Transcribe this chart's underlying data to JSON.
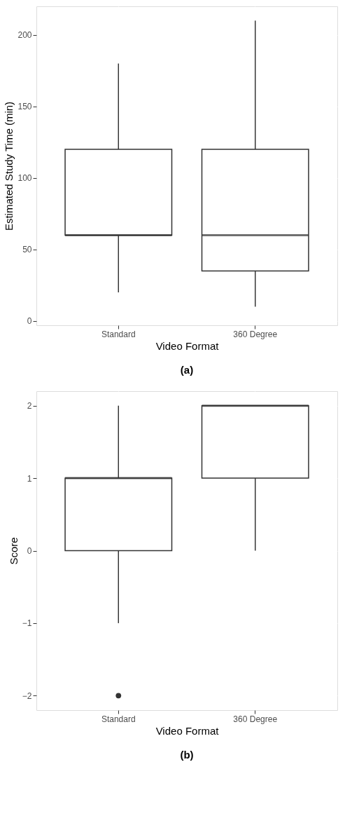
{
  "chart_data": [
    {
      "type": "box",
      "xlabel": "Video Format",
      "ylabel": "Estimated Study Time (min)",
      "categories": [
        "Standard",
        "360 Degree"
      ],
      "boxes": [
        {
          "low": 20,
          "q1": 60,
          "median": 60,
          "q3": 120,
          "high": 180
        },
        {
          "low": 10,
          "q1": 35,
          "median": 60,
          "q3": 120,
          "high": 210
        }
      ],
      "ylim": [
        -3,
        220
      ],
      "yticks": [
        0,
        50,
        100,
        150,
        200
      ],
      "grid": true,
      "annotations": [
        "(a)"
      ]
    },
    {
      "type": "box",
      "xlabel": "Video Format",
      "ylabel": "Score",
      "categories": [
        "Standard",
        "360 Degree"
      ],
      "boxes": [
        {
          "low": -1,
          "q1": 0,
          "median": 1,
          "q3": 1,
          "high": 2,
          "outliers": [
            -2
          ]
        },
        {
          "low": 0,
          "q1": 1,
          "median": 2,
          "q3": 2,
          "high": 2
        }
      ],
      "ylim": [
        -2.2,
        2.2
      ],
      "yticks": [
        {
          "value": -2,
          "label": "−2"
        },
        {
          "value": -1,
          "label": "−1"
        },
        0,
        1,
        2
      ],
      "grid": true,
      "annotations": [
        "(b)"
      ]
    }
  ]
}
